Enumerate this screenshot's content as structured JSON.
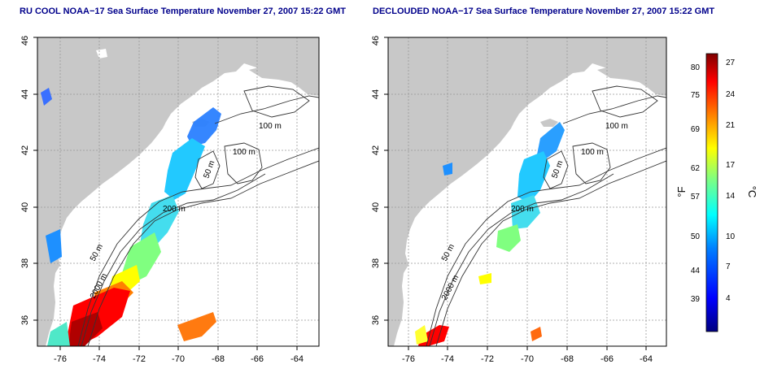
{
  "panels": [
    {
      "title": "RU COOL NOAA−17 Sea Surface Temperature November 27, 2007 15:22 GMT"
    },
    {
      "title": "DECLOUDED NOAA−17 Sea Surface Temperature November 27, 2007 15:22 GMT"
    }
  ],
  "map": {
    "lon_ticks": [
      "-76",
      "-74",
      "-72",
      "-70",
      "-68",
      "-66",
      "-64"
    ],
    "lat_ticks": [
      "36",
      "38",
      "40",
      "42",
      "44",
      "46"
    ],
    "contour_labels": [
      "100 m",
      "100 m",
      "50 m",
      "200 m",
      "50 m",
      "2000 m"
    ]
  },
  "colorbar": {
    "f_label": "°F",
    "c_label": "°C",
    "f_ticks": [
      "80",
      "75",
      "69",
      "62",
      "57",
      "50",
      "44",
      "39"
    ],
    "c_ticks": [
      "27",
      "24",
      "21",
      "17",
      "14",
      "10",
      "7",
      "4"
    ],
    "colors": [
      "#00007f",
      "#0000ff",
      "#0080ff",
      "#00ffff",
      "#80ff80",
      "#ffff00",
      "#ff8000",
      "#ff0000",
      "#7f0000"
    ]
  },
  "colors": {
    "land": "#c8c8c8",
    "grid": "#999999",
    "title": "#00008b"
  }
}
